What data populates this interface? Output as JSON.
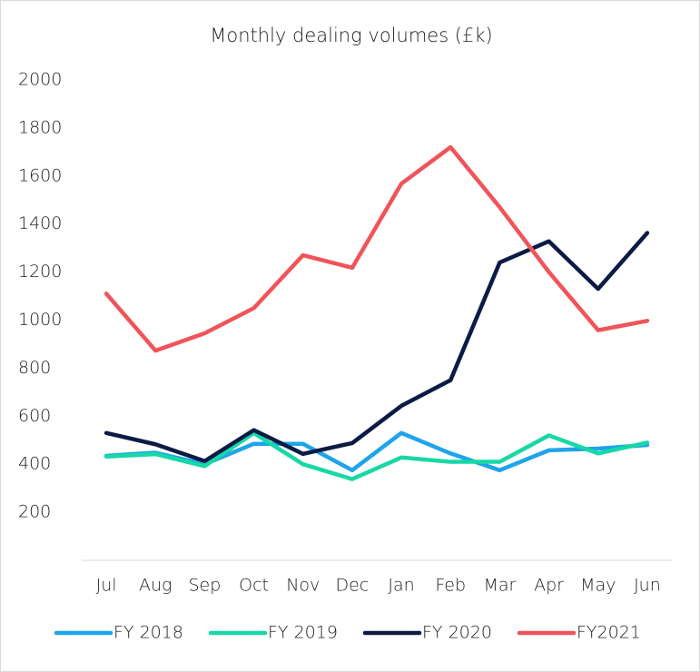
{
  "chart_data": {
    "type": "line",
    "title": "Monthly dealing volumes (£k)",
    "categories": [
      "Jul",
      "Aug",
      "Sep",
      "Oct",
      "Nov",
      "Dec",
      "Jan",
      "Feb",
      "Mar",
      "Apr",
      "May",
      "Jun"
    ],
    "series": [
      {
        "name": "FY 2018",
        "color": "#1ea4ea",
        "values": [
          435,
          448,
          400,
          485,
          485,
          375,
          530,
          445,
          375,
          458,
          465,
          480
        ]
      },
      {
        "name": "FY 2019",
        "color": "#17d8a6",
        "values": [
          432,
          442,
          392,
          530,
          400,
          338,
          428,
          410,
          410,
          520,
          445,
          490
        ]
      },
      {
        "name": "FY 2020",
        "color": "#0c1b45",
        "values": [
          530,
          483,
          413,
          542,
          443,
          488,
          643,
          750,
          1240,
          1328,
          1130,
          1363
        ]
      },
      {
        "name": "FY2021",
        "color": "#f0545a",
        "values": [
          1110,
          873,
          945,
          1050,
          1270,
          1218,
          1568,
          1720,
          1470,
          1200,
          958,
          997
        ]
      }
    ],
    "ylim": [
      0,
      2000
    ],
    "yticks": [
      200,
      400,
      600,
      800,
      1000,
      1200,
      1400,
      1600,
      1800,
      2000
    ],
    "grid": false,
    "legend": "bottom"
  }
}
